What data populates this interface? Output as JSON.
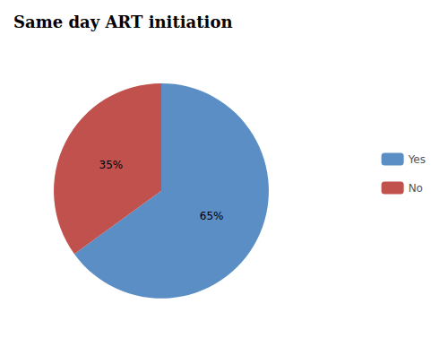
{
  "chart_data": {
    "type": "pie",
    "title": "Same day ART initiation",
    "categories": [
      "Yes",
      "No"
    ],
    "values": [
      65,
      35
    ],
    "value_labels": [
      "65%",
      "35%"
    ],
    "colors": [
      "#5B8EC5",
      "#C0514D"
    ],
    "data_labels": true,
    "legend": "right"
  }
}
